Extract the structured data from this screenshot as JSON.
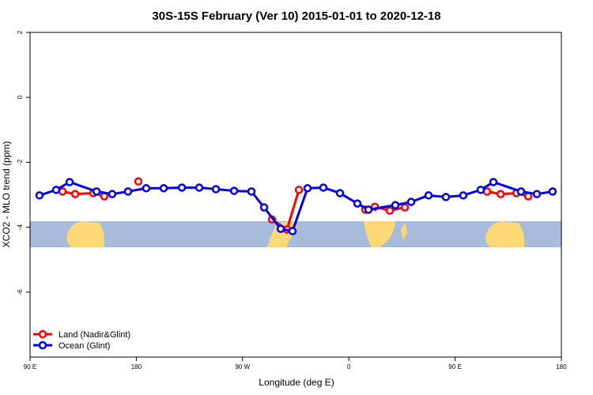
{
  "chart_data": {
    "type": "line",
    "title": "30S-15S February (Ver 10)   2015-01-01 to 2020-12-18",
    "xlabel": "Longitude (deg E)",
    "ylabel": "XCO2 - MLO trend (ppm)",
    "xlim": [
      90,
      540
    ],
    "ylim": [
      -8,
      2
    ],
    "xticks": [
      {
        "value": 90,
        "label": "90 E"
      },
      180,
      {
        "value": 270,
        "label": "90 W"
      },
      {
        "value": 360,
        "label": "0"
      },
      {
        "value": 450,
        "label": "90 E"
      },
      {
        "value": 540,
        "label": "180"
      }
    ],
    "yticks": [
      -6,
      -4,
      -2,
      0,
      2
    ],
    "legend": "bottom-left",
    "series": [
      {
        "name": "Land (Nadir&Glint)",
        "color": "#ff0000",
        "x": [
          117.5,
          128.2,
          143.6,
          152.9,
          null,
          181.7,
          null,
          294.9,
          307.6,
          317.7,
          null,
          373.9,
          382.0,
          394.7,
          407.4,
          null,
          477.0,
          488.5,
          501.9,
          511.9
        ],
        "values": [
          -2.9,
          -2.98,
          -2.95,
          -3.05,
          null,
          -2.59,
          null,
          -3.76,
          -4.07,
          -2.85,
          null,
          -3.46,
          -3.37,
          -3.49,
          -3.39,
          null,
          -2.9,
          -2.98,
          -2.95,
          -3.05
        ]
      },
      {
        "name": "Ocean (Glint)",
        "color": "#0000ee",
        "x": [
          98.0,
          112.1,
          123.5,
          146.3,
          159.6,
          173.0,
          188.4,
          203.2,
          218.6,
          233.3,
          247.4,
          262.8,
          277.5,
          288.2,
          302.3,
          312.3,
          325.0,
          338.4,
          352.5,
          367.2,
          376.6,
          399.4,
          412.8,
          427.5,
          442.2,
          456.9,
          471.7,
          482.4,
          505.8,
          519.2,
          532.6
        ],
        "values": [
          -3.02,
          -2.85,
          -2.61,
          -2.9,
          -2.98,
          -2.9,
          -2.8,
          -2.8,
          -2.78,
          -2.78,
          -2.83,
          -2.88,
          -2.9,
          -3.39,
          -4.05,
          -4.12,
          -2.8,
          -2.78,
          -2.95,
          -3.27,
          -3.46,
          -3.32,
          -3.22,
          -3.02,
          -3.07,
          -3.02,
          -2.85,
          -2.61,
          -2.9,
          -2.98,
          -2.9
        ]
      }
    ]
  }
}
